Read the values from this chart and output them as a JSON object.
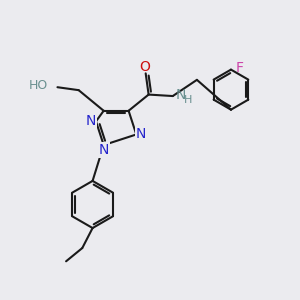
{
  "bg_color": "#ebebef",
  "bond_color": "#1a1a1a",
  "N_color": "#2525cc",
  "O_color": "#cc1010",
  "F_color": "#cc44aa",
  "H_color": "#6a9090",
  "line_width": 1.5,
  "font_size": 10,
  "small_font_size": 9,
  "xlim": [
    0,
    10
  ],
  "ylim": [
    0,
    10
  ]
}
